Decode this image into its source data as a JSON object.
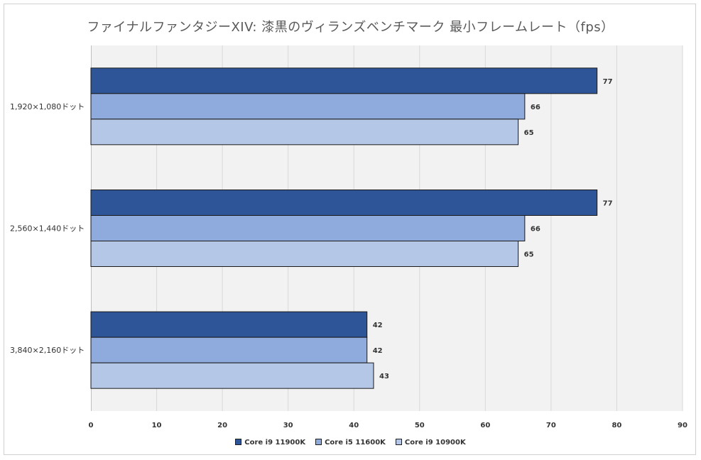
{
  "chart_data": {
    "type": "bar",
    "orientation": "horizontal",
    "title": "ファイナルファンタジーXIV: 漆黒のヴィランズベンチマーク 最小フレームレート（fps）",
    "categories": [
      "1,920×1,080ドット",
      "2,560×1,440ドット",
      "3,840×2,160ドット"
    ],
    "series": [
      {
        "name": "Core i9 11900K",
        "values": [
          77,
          77,
          42
        ],
        "color": "#2e5597"
      },
      {
        "name": "Core i5 11600K",
        "values": [
          66,
          66,
          42
        ],
        "color": "#8faadc"
      },
      {
        "name": "Core i9 10900K",
        "values": [
          65,
          65,
          43
        ],
        "color": "#b4c7e7"
      }
    ],
    "xlim": [
      0,
      90
    ],
    "xticks": [
      0,
      10,
      20,
      30,
      40,
      50,
      60,
      70,
      80,
      90
    ],
    "grid": true,
    "legend_position": "bottom",
    "plot_background": "#f2f2f2",
    "gridline_color": "#d9d9d9"
  }
}
